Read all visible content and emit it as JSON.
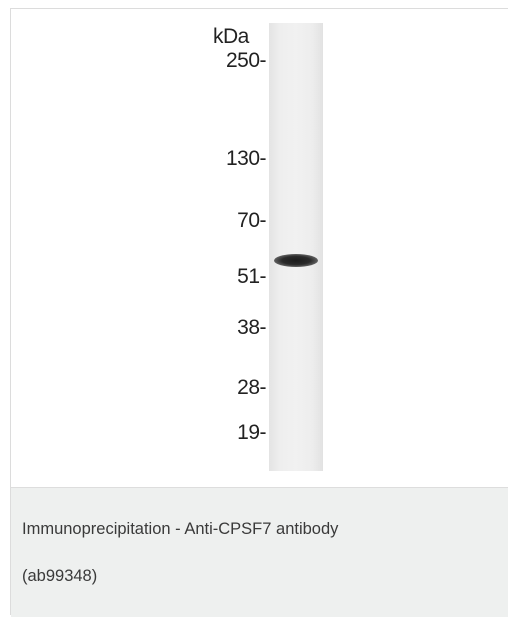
{
  "figure": {
    "unit_label": "kDa",
    "markers": [
      {
        "label": "250-"
      },
      {
        "label": "130-"
      },
      {
        "label": "70-"
      },
      {
        "label": "51-"
      },
      {
        "label": "38-"
      },
      {
        "label": "28-"
      },
      {
        "label": "19-"
      }
    ]
  },
  "caption": {
    "line1": "Immunoprecipitation - Anti-CPSF7 antibody",
    "line2": "(ab99348)"
  },
  "colors": {
    "caption_bg": "#eef0ef",
    "band": "#1b1b1b"
  }
}
